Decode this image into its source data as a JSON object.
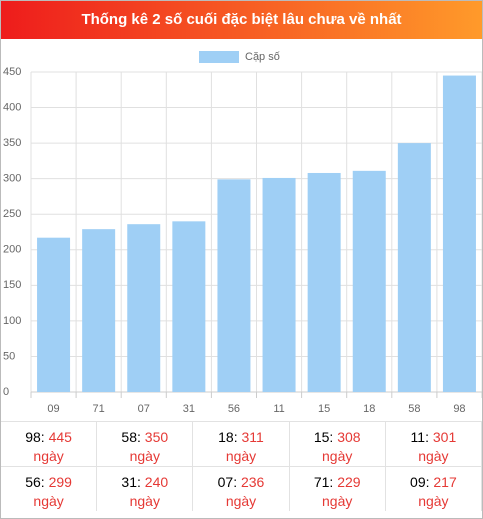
{
  "chart_data": {
    "type": "bar",
    "title": "Thống kê 2 số cuối đặc biệt lâu chưa về nhất",
    "categories": [
      "09",
      "71",
      "07",
      "31",
      "56",
      "11",
      "15",
      "18",
      "58",
      "98"
    ],
    "series": [
      {
        "name": "Cặp số",
        "color": "#9fcff5",
        "values": [
          217,
          229,
          236,
          240,
          299,
          301,
          308,
          311,
          350,
          445
        ]
      }
    ],
    "ylim": [
      0,
      450
    ],
    "yticks": [
      0,
      50,
      100,
      150,
      200,
      250,
      300,
      350,
      400,
      450
    ],
    "grid": true,
    "legend": "top"
  },
  "table": {
    "unit": "ngày",
    "rows": [
      [
        {
          "label": "98:",
          "value": 445
        },
        {
          "label": "58:",
          "value": 350
        },
        {
          "label": "18:",
          "value": 311
        },
        {
          "label": "15:",
          "value": 308
        },
        {
          "label": "11:",
          "value": 301
        }
      ],
      [
        {
          "label": "56:",
          "value": 299
        },
        {
          "label": "31:",
          "value": 240
        },
        {
          "label": "07:",
          "value": 236
        },
        {
          "label": "71:",
          "value": 229
        },
        {
          "label": "09:",
          "value": 217
        }
      ]
    ]
  }
}
